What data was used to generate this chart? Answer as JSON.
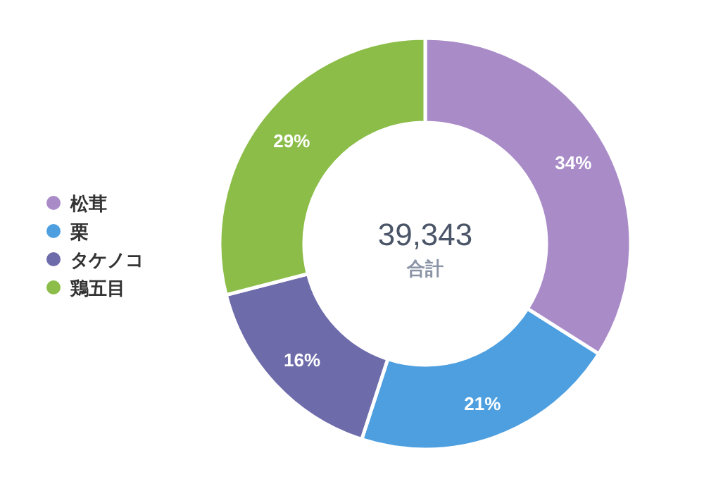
{
  "chart_data": {
    "type": "donut",
    "categories": [
      "松茸",
      "栗",
      "タケノコ",
      "鶏五目"
    ],
    "values": [
      34,
      21,
      16,
      29
    ],
    "colors": [
      "#a98bc8",
      "#4d9fe0",
      "#6e6bab",
      "#8bbd48"
    ],
    "value_labels": [
      "34%",
      "21%",
      "16%",
      "29%"
    ],
    "legend": "left",
    "annotations": [
      "39,343",
      "合計"
    ]
  }
}
